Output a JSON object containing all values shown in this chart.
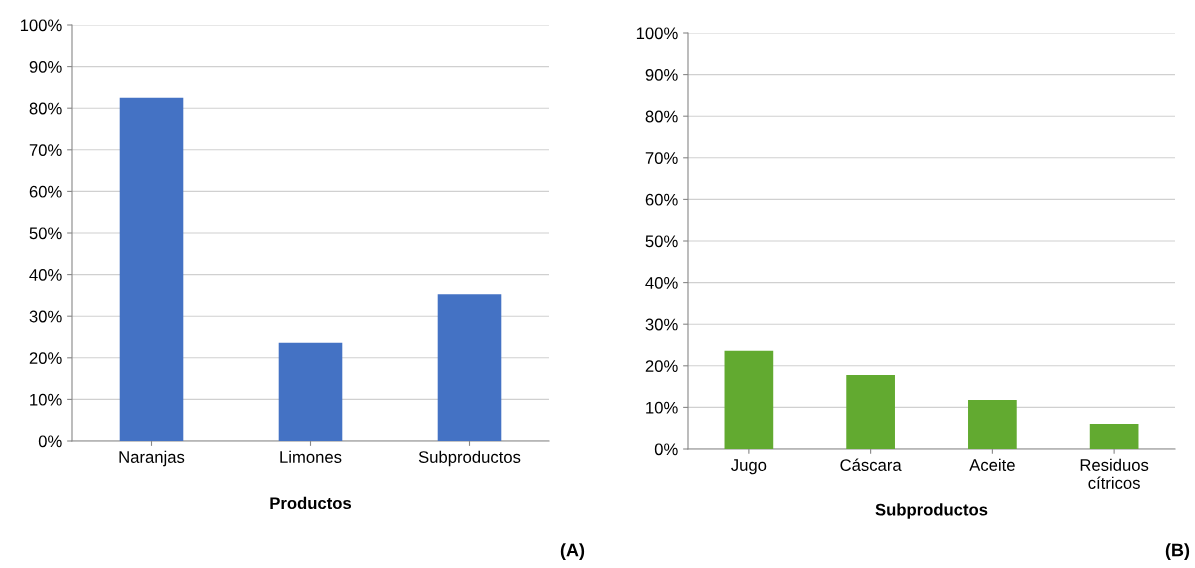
{
  "chart_data": [
    {
      "type": "bar",
      "xlabel": "Productos",
      "categories": [
        "Naranjas",
        "Limones",
        "Subproductos"
      ],
      "values": [
        82.5,
        23.6,
        35.3
      ],
      "color": "#4472c4",
      "ylim": [
        0,
        100
      ],
      "yticks": [
        {
          "value": 0,
          "label": "0%"
        },
        {
          "value": 10,
          "label": "10%"
        },
        {
          "value": 20,
          "label": "20%"
        },
        {
          "value": 30,
          "label": "30%"
        },
        {
          "value": 40,
          "label": "40%"
        },
        {
          "value": 50,
          "label": "50%"
        },
        {
          "value": 60,
          "label": "60%"
        },
        {
          "value": 70,
          "label": "70%"
        },
        {
          "value": 80,
          "label": "80%"
        },
        {
          "value": 90,
          "label": "90%"
        },
        {
          "value": 100,
          "label": "100%"
        }
      ],
      "grid": "y",
      "annotations": [
        "(A)"
      ]
    },
    {
      "type": "bar",
      "xlabel": "Subproductos",
      "categories": [
        "Jugo",
        "Cáscara",
        "Aceite",
        "Residuos\ncítricos"
      ],
      "values": [
        23.6,
        17.8,
        11.8,
        6.0
      ],
      "color": "#62aa30",
      "ylim": [
        0,
        100
      ],
      "yticks": [
        {
          "value": 0,
          "label": "0%"
        },
        {
          "value": 10,
          "label": "10%"
        },
        {
          "value": 20,
          "label": "20%"
        },
        {
          "value": 30,
          "label": "30%"
        },
        {
          "value": 40,
          "label": "40%"
        },
        {
          "value": 50,
          "label": "50%"
        },
        {
          "value": 60,
          "label": "60%"
        },
        {
          "value": 70,
          "label": "70%"
        },
        {
          "value": 80,
          "label": "80%"
        },
        {
          "value": 90,
          "label": "90%"
        },
        {
          "value": 100,
          "label": "100%"
        }
      ],
      "grid": "y",
      "annotations": [
        "(B)"
      ]
    }
  ]
}
